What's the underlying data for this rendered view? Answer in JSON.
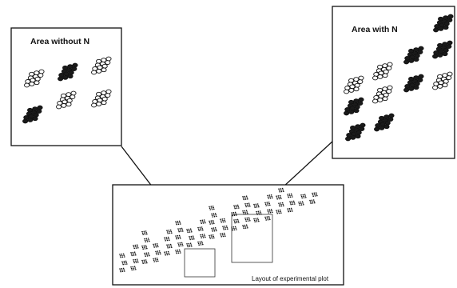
{
  "panel_without_n": {
    "title": "Area without N"
  },
  "panel_with_n": {
    "title": "Area with N"
  },
  "layout_panel": {
    "caption": "Layout of experimental plot"
  },
  "colors": {
    "line": "#111111",
    "dark_plant": "#1a1a1a",
    "light_plant": "#ffffff"
  }
}
